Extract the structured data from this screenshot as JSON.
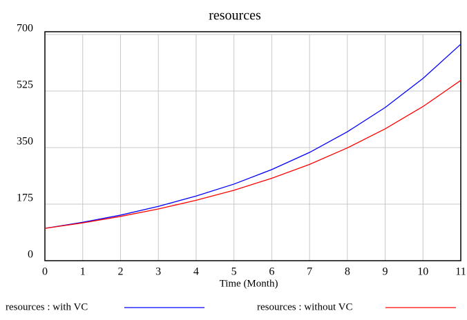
{
  "chart_data": {
    "type": "line",
    "title": "resources",
    "x_label": "Time (Month)",
    "x": [
      0,
      1,
      2,
      3,
      4,
      5,
      6,
      7,
      8,
      9,
      10,
      11
    ],
    "series": [
      {
        "name": "resources : with VC",
        "color": "#0000ff",
        "values": [
          100,
          119,
          141,
          168,
          200,
          237,
          282,
          335,
          399,
          474,
          564,
          670
        ]
      },
      {
        "name": "resources : without VC",
        "color": "#ff0000",
        "values": [
          100,
          117,
          137,
          160,
          187,
          218,
          255,
          298,
          349,
          408,
          477,
          558
        ]
      }
    ],
    "xlim": [
      0,
      11
    ],
    "xticks": [
      0,
      1,
      2,
      3,
      4,
      5,
      6,
      7,
      8,
      9,
      10,
      11
    ],
    "ylim": [
      0,
      700
    ],
    "yticks": [
      0,
      175,
      350,
      525,
      700
    ],
    "grid": true
  }
}
